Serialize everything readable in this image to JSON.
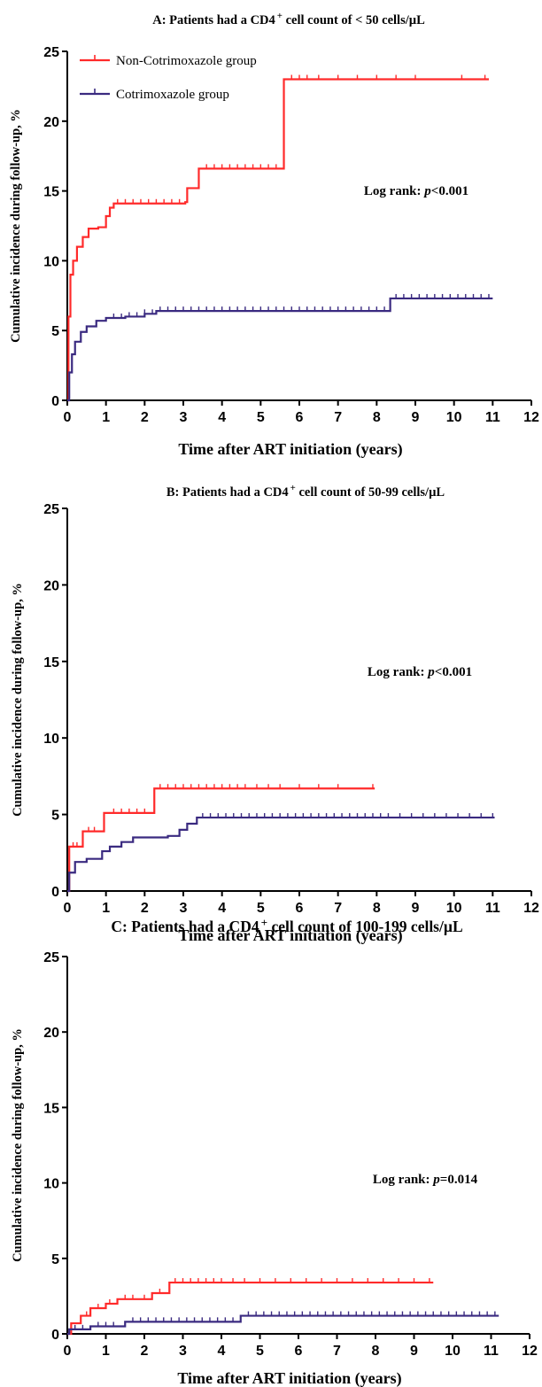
{
  "chart_data": [
    {
      "type": "line",
      "step": true,
      "title": "A: Patients had a CD4 cell count of < 50 cells/µL",
      "title_parts": {
        "pre": "A: Patients had a CD4",
        "sup": "+",
        "post": " cell count of < 50 cells/µL"
      },
      "xlabel": "Time after ART initiation (years)",
      "ylabel": "Cumulative incidence during follow-up, %",
      "xlim": [
        0,
        12
      ],
      "ylim": [
        0,
        25
      ],
      "xticks": [
        0,
        1,
        2,
        3,
        4,
        5,
        6,
        7,
        8,
        9,
        10,
        11,
        12
      ],
      "yticks": [
        0,
        5,
        10,
        15,
        20,
        25
      ],
      "legend": "top-left",
      "annotation": {
        "pre": "Log rank: ",
        "p": "p",
        "post": "<0.001"
      },
      "series": [
        {
          "name": "Non-Cotrimoxazole group",
          "color": "#ff2a2a",
          "points": [
            [
              0,
              0
            ],
            [
              0.03,
              6
            ],
            [
              0.08,
              9
            ],
            [
              0.15,
              10
            ],
            [
              0.25,
              11
            ],
            [
              0.4,
              11.7
            ],
            [
              0.55,
              12.3
            ],
            [
              0.8,
              12.4
            ],
            [
              1.0,
              13.2
            ],
            [
              1.1,
              13.8
            ],
            [
              1.2,
              14.1
            ],
            [
              3.05,
              14.2
            ],
            [
              3.1,
              15.2
            ],
            [
              3.4,
              16.6
            ],
            [
              5.6,
              16.6
            ],
            [
              5.6,
              23.0
            ],
            [
              10.9,
              23.0
            ]
          ],
          "censor_x": [
            1.3,
            1.5,
            1.7,
            1.9,
            2.1,
            2.3,
            2.5,
            2.7,
            2.9,
            3.6,
            3.8,
            4.0,
            4.2,
            4.4,
            4.6,
            4.8,
            5.0,
            5.2,
            5.4,
            5.8,
            6.0,
            6.2,
            6.5,
            7.0,
            7.5,
            8.0,
            8.5,
            9.0,
            10.2,
            10.8
          ]
        },
        {
          "name": "Cotrimoxazole group",
          "color": "#3a2a80",
          "points": [
            [
              0,
              0
            ],
            [
              0.05,
              2
            ],
            [
              0.12,
              3.3
            ],
            [
              0.2,
              4.2
            ],
            [
              0.35,
              4.9
            ],
            [
              0.5,
              5.3
            ],
            [
              0.75,
              5.7
            ],
            [
              1.0,
              5.9
            ],
            [
              1.5,
              6.0
            ],
            [
              2.0,
              6.2
            ],
            [
              2.3,
              6.4
            ],
            [
              8.35,
              6.4
            ],
            [
              8.35,
              7.3
            ],
            [
              11.0,
              7.3
            ]
          ],
          "censor_x": [
            1.2,
            1.4,
            1.6,
            1.8,
            2.0,
            2.2,
            2.4,
            2.6,
            2.8,
            3.0,
            3.2,
            3.4,
            3.6,
            3.8,
            4.0,
            4.2,
            4.4,
            4.6,
            4.8,
            5.0,
            5.2,
            5.4,
            5.6,
            5.8,
            6.0,
            6.2,
            6.4,
            6.6,
            6.8,
            7.0,
            7.2,
            7.4,
            7.6,
            7.8,
            8.0,
            8.2,
            8.5,
            8.7,
            8.9,
            9.1,
            9.3,
            9.5,
            9.7,
            9.9,
            10.1,
            10.3,
            10.5,
            10.7,
            10.9
          ]
        }
      ]
    },
    {
      "type": "line",
      "step": true,
      "title": "B: Patients had a CD4 cell count of 50-99 cells/µL",
      "title_parts": {
        "pre": "B: Patients had a CD4",
        "sup": "+",
        "post": " cell count of 50-99 cells/µL"
      },
      "xlabel": "Time after ART initiation (years)",
      "ylabel": "Cumulative incidence during follow-up, %",
      "xlim": [
        0,
        12
      ],
      "ylim": [
        0,
        25
      ],
      "xticks": [
        0,
        1,
        2,
        3,
        4,
        5,
        6,
        7,
        8,
        9,
        10,
        11,
        12
      ],
      "yticks": [
        0,
        5,
        10,
        15,
        20,
        25
      ],
      "annotation": {
        "pre": "Log rank: ",
        "p": "p",
        "post": "<0.001"
      },
      "series": [
        {
          "name": "Non-Cotrimoxazole group",
          "color": "#ff2a2a",
          "points": [
            [
              0,
              0
            ],
            [
              0.05,
              2.9
            ],
            [
              0.4,
              2.9
            ],
            [
              0.4,
              3.9
            ],
            [
              0.95,
              3.9
            ],
            [
              0.95,
              5.1
            ],
            [
              2.25,
              5.1
            ],
            [
              2.25,
              6.7
            ],
            [
              7.95,
              6.7
            ]
          ],
          "censor_x": [
            0.15,
            0.25,
            0.55,
            0.7,
            1.2,
            1.4,
            1.6,
            1.8,
            2.0,
            2.4,
            2.6,
            2.8,
            3.0,
            3.2,
            3.4,
            3.6,
            3.8,
            4.0,
            4.2,
            4.4,
            4.6,
            4.9,
            5.2,
            5.5,
            6.0,
            6.5,
            7.0,
            7.9
          ]
        },
        {
          "name": "Cotrimoxazole group",
          "color": "#3a2a80",
          "points": [
            [
              0,
              0
            ],
            [
              0.05,
              1.2
            ],
            [
              0.2,
              1.9
            ],
            [
              0.5,
              2.1
            ],
            [
              0.9,
              2.6
            ],
            [
              1.1,
              2.9
            ],
            [
              1.4,
              3.2
            ],
            [
              1.7,
              3.5
            ],
            [
              2.6,
              3.6
            ],
            [
              2.9,
              4.0
            ],
            [
              3.1,
              4.4
            ],
            [
              3.35,
              4.8
            ],
            [
              11.05,
              4.8
            ]
          ],
          "censor_x": [
            3.5,
            3.7,
            3.9,
            4.1,
            4.3,
            4.5,
            4.7,
            4.9,
            5.1,
            5.3,
            5.5,
            5.7,
            5.9,
            6.1,
            6.3,
            6.5,
            6.7,
            6.9,
            7.1,
            7.3,
            7.5,
            7.7,
            7.9,
            8.1,
            8.3,
            8.6,
            8.9,
            9.2,
            9.5,
            9.8,
            10.1,
            10.4,
            10.7,
            11.0
          ]
        }
      ]
    },
    {
      "type": "line",
      "step": true,
      "title": "C: Patients had a CD4 cell count of 100-199 cells/µL",
      "title_parts": {
        "pre": "C: Patients had a CD4",
        "sup": "+",
        "post": " cell count of 100-199 cells/µL"
      },
      "xlabel": "Time after ART initiation (years)",
      "ylabel": "Cumulative incidence during follow-up, %",
      "xlim": [
        0,
        12
      ],
      "ylim": [
        0,
        25
      ],
      "xticks": [
        0,
        1,
        2,
        3,
        4,
        5,
        6,
        7,
        8,
        9,
        10,
        11,
        12
      ],
      "yticks": [
        0,
        5,
        10,
        15,
        20,
        25
      ],
      "annotation": {
        "pre": "Log rank: ",
        "p": "p",
        "post": "=0.014"
      },
      "series": [
        {
          "name": "Non-Cotrimoxazole group",
          "color": "#ff2a2a",
          "points": [
            [
              0,
              0
            ],
            [
              0.1,
              0.7
            ],
            [
              0.35,
              1.2
            ],
            [
              0.6,
              1.7
            ],
            [
              1.0,
              2.0
            ],
            [
              1.3,
              2.3
            ],
            [
              1.9,
              2.3
            ],
            [
              2.2,
              2.7
            ],
            [
              2.65,
              3.4
            ],
            [
              9.5,
              3.4
            ]
          ],
          "censor_x": [
            0.5,
            0.8,
            1.1,
            1.5,
            1.7,
            2.0,
            2.4,
            2.8,
            3.0,
            3.2,
            3.4,
            3.6,
            3.8,
            4.0,
            4.3,
            4.6,
            5.0,
            5.4,
            5.8,
            6.2,
            6.6,
            7.0,
            7.4,
            7.8,
            8.2,
            8.6,
            9.0,
            9.4
          ]
        },
        {
          "name": "Cotrimoxazole group",
          "color": "#3a2a80",
          "points": [
            [
              0,
              0
            ],
            [
              0.05,
              0.3
            ],
            [
              0.6,
              0.3
            ],
            [
              0.6,
              0.5
            ],
            [
              1.5,
              0.5
            ],
            [
              1.5,
              0.8
            ],
            [
              4.5,
              0.8
            ],
            [
              4.5,
              1.2
            ],
            [
              11.2,
              1.2
            ]
          ],
          "censor_x": [
            0.2,
            0.4,
            0.8,
            1.0,
            1.2,
            1.7,
            1.9,
            2.1,
            2.3,
            2.5,
            2.7,
            2.9,
            3.1,
            3.3,
            3.5,
            3.7,
            3.9,
            4.1,
            4.3,
            4.7,
            4.9,
            5.1,
            5.3,
            5.5,
            5.7,
            5.9,
            6.1,
            6.3,
            6.5,
            6.7,
            6.9,
            7.1,
            7.3,
            7.5,
            7.7,
            7.9,
            8.1,
            8.3,
            8.5,
            8.7,
            8.9,
            9.1,
            9.3,
            9.5,
            9.7,
            9.9,
            10.1,
            10.3,
            10.5,
            10.7,
            10.9,
            11.1
          ]
        }
      ]
    }
  ]
}
